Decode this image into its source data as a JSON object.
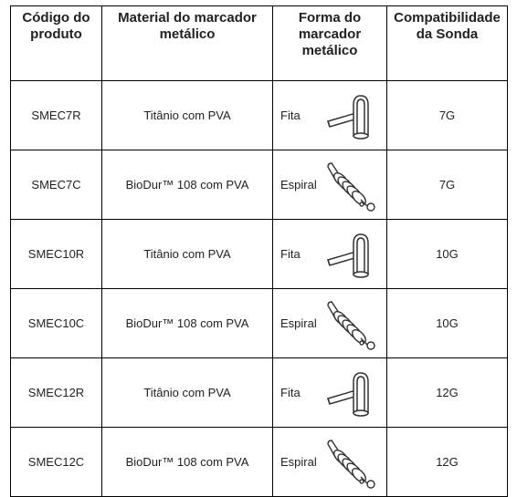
{
  "table": {
    "header": [
      "Código do produto",
      "Material do marcador metálico",
      "Forma do marcador metálico",
      "Compatibilidade da Sonda"
    ],
    "rows": [
      [
        "SMEC7R",
        "Titânio com PVA",
        "Fita",
        "7G"
      ],
      [
        "SMEC7C",
        "BioDur™ 108 com PVA",
        "Espiral",
        "7G"
      ],
      [
        "SMEC10R",
        "Titânio com PVA",
        "Fita",
        "10G"
      ],
      [
        "SMEC10C",
        "BioDur™ 108 com PVA",
        "Espiral",
        "10G"
      ],
      [
        "SMEC12R",
        "Titânio com PVA",
        "Fita",
        "12G"
      ],
      [
        "SMEC12C",
        "BioDur™ 108 com PVA",
        "Espiral",
        "12G"
      ]
    ]
  }
}
